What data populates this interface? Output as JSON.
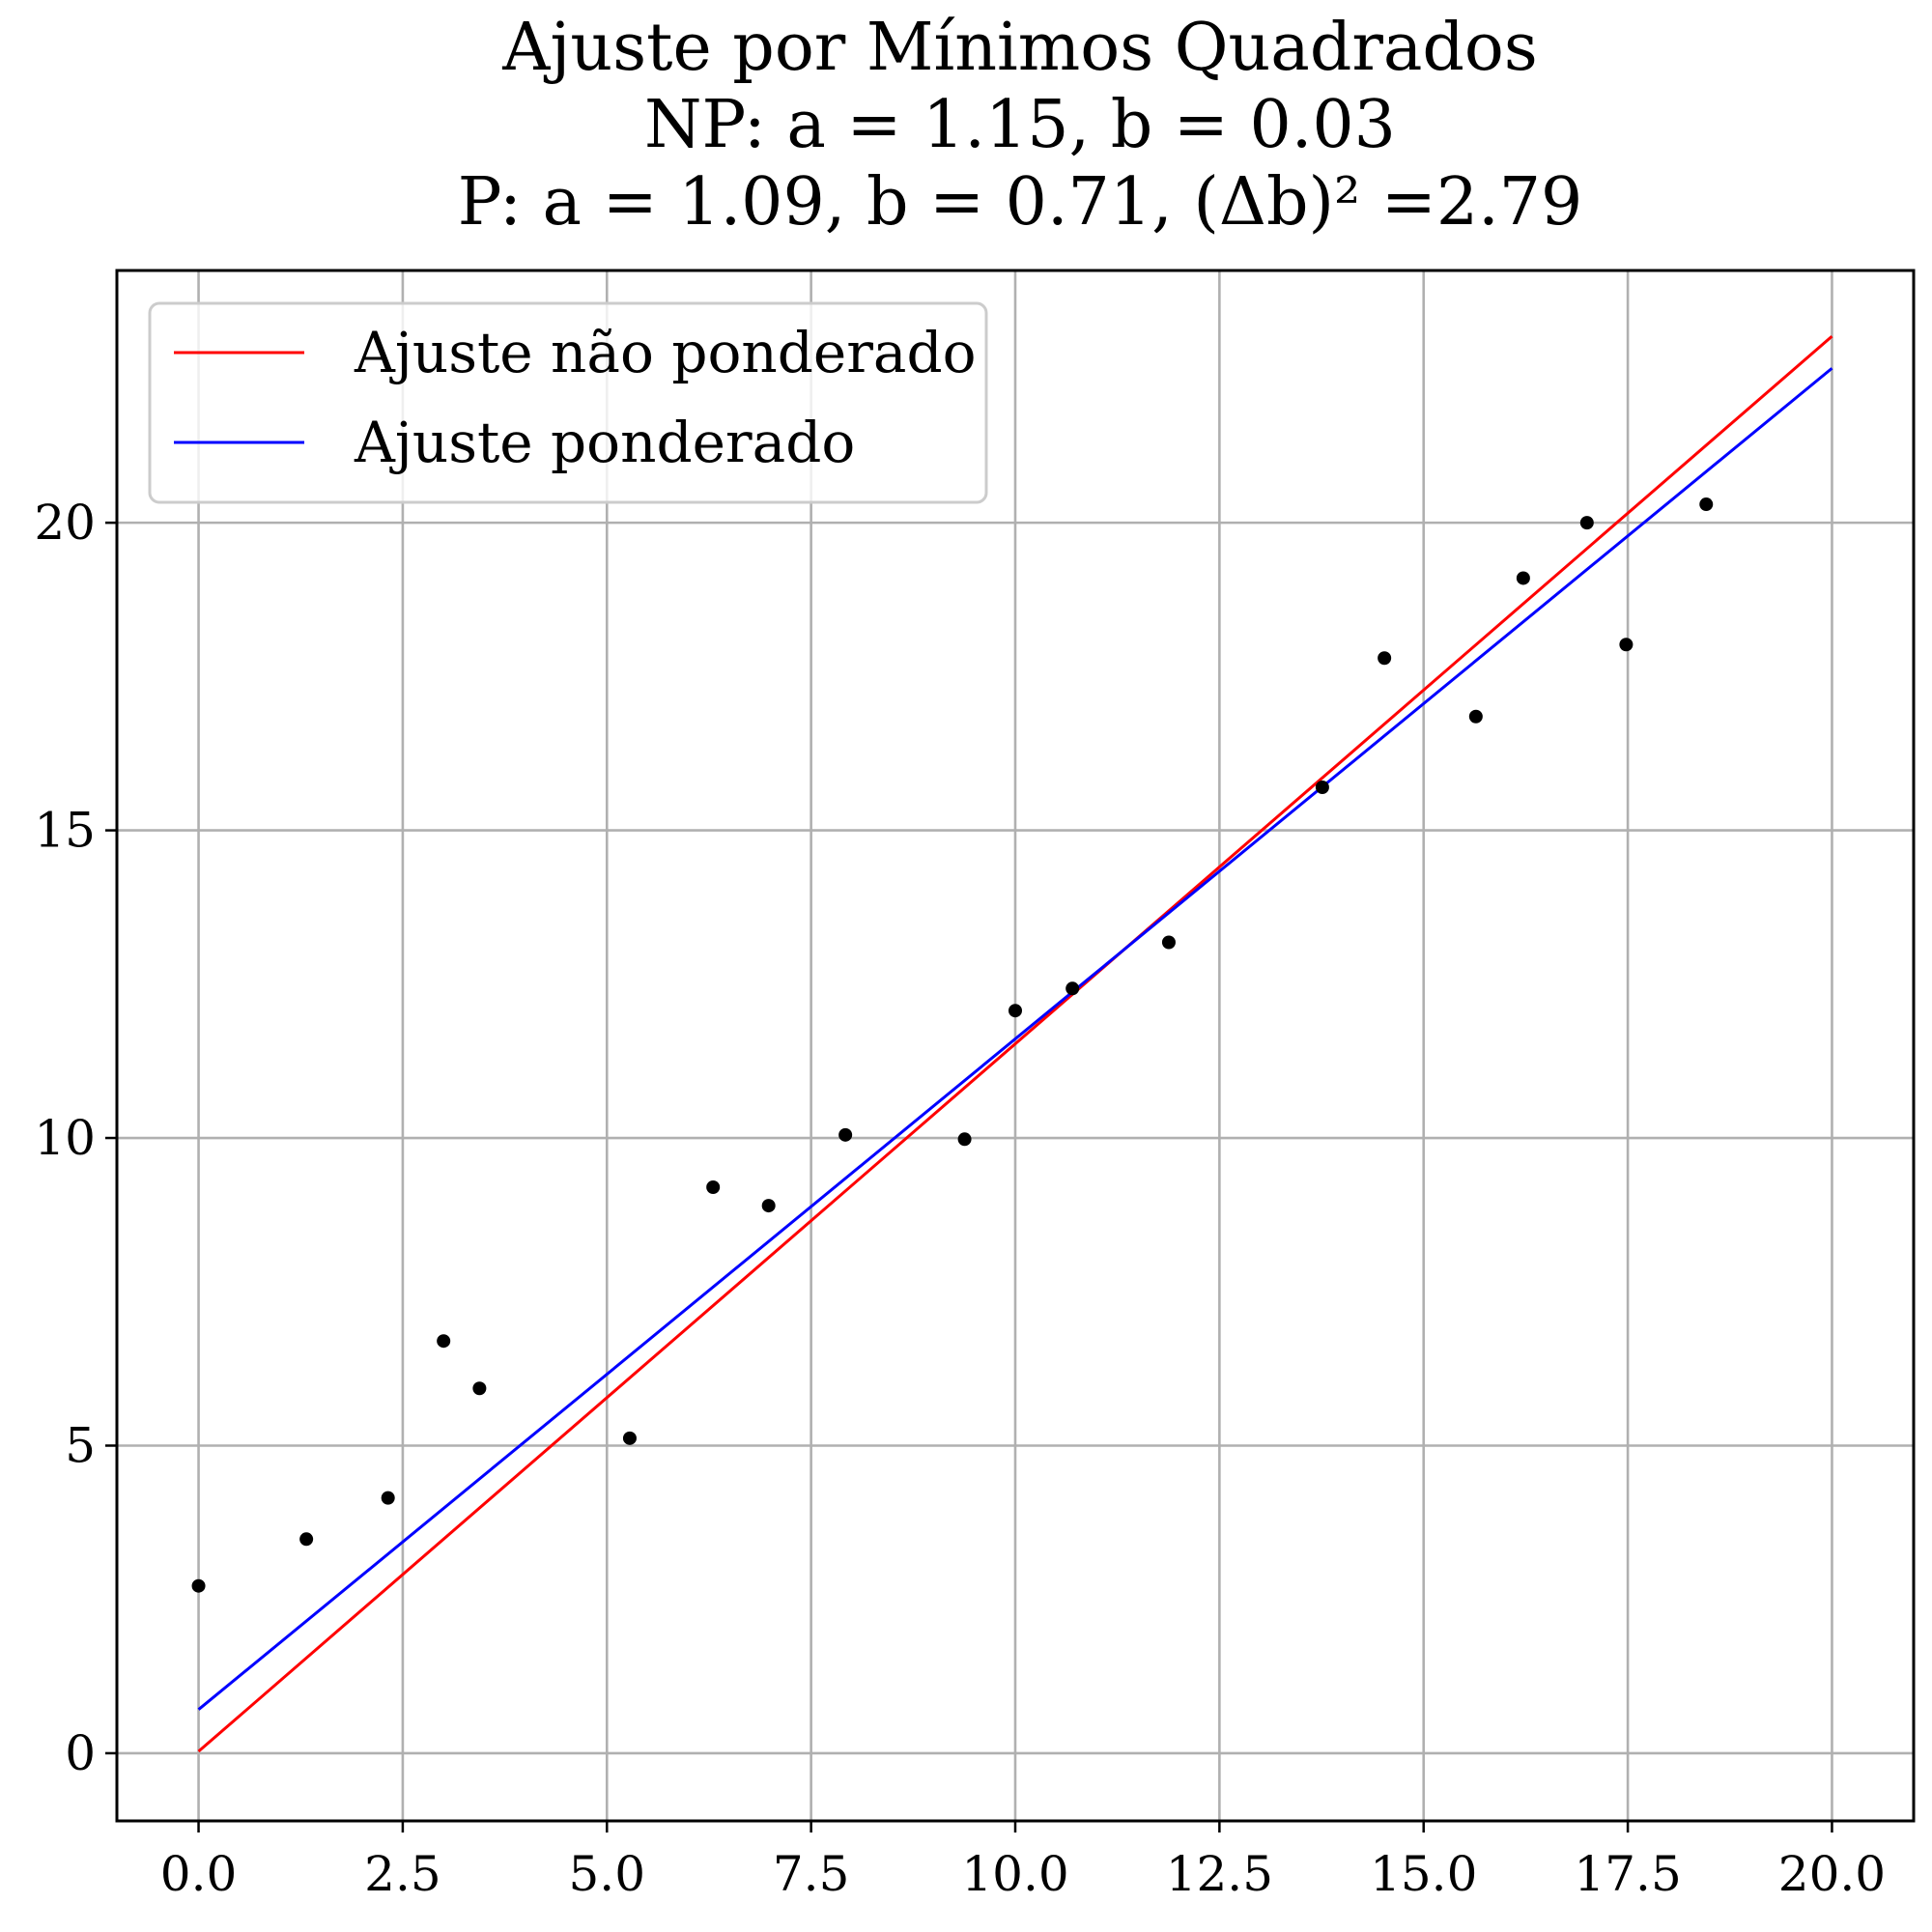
{
  "chart_data": {
    "type": "scatter",
    "title_lines": [
      "Ajuste por Mínimos Quadrados",
      "NP: a = 1.15, b = 0.03",
      "P: a = 1.09, b = 0.71, (Δb)² =2.79"
    ],
    "xlabel": "",
    "ylabel": "",
    "xlim": [
      -1.0,
      21.0
    ],
    "ylim": [
      -1.1,
      24.1
    ],
    "xticks": [
      0.0,
      2.5,
      5.0,
      7.5,
      10.0,
      12.5,
      15.0,
      17.5,
      20.0
    ],
    "xtick_labels": [
      "0.0",
      "2.5",
      "5.0",
      "7.5",
      "10.0",
      "12.5",
      "15.0",
      "17.5",
      "20.0"
    ],
    "yticks": [
      0,
      5,
      10,
      15,
      20
    ],
    "ytick_labels": [
      "0",
      "5",
      "10",
      "15",
      "20"
    ],
    "grid": true,
    "legend_position": "top-left",
    "points": {
      "color": "#000000",
      "x": [
        0.0,
        1.32,
        2.32,
        3.0,
        3.44,
        5.28,
        6.3,
        6.98,
        7.92,
        9.38,
        10.0,
        10.7,
        11.88,
        13.76,
        14.52,
        15.64,
        16.22,
        17.0,
        17.48,
        18.46
      ],
      "y": [
        2.72,
        3.48,
        4.15,
        6.7,
        5.93,
        5.12,
        9.2,
        8.9,
        10.05,
        9.98,
        12.07,
        12.43,
        13.18,
        15.7,
        17.8,
        16.85,
        19.1,
        20.0,
        18.02,
        20.3
      ]
    },
    "series": [
      {
        "name": "Ajuste não ponderado",
        "type": "line",
        "color": "#ff0000",
        "slope": 1.15,
        "intercept": 0.03,
        "x": [
          0,
          20
        ]
      },
      {
        "name": "Ajuste ponderado",
        "type": "line",
        "color": "#0000ff",
        "slope": 1.09,
        "intercept": 0.71,
        "x": [
          0,
          20
        ]
      }
    ]
  }
}
